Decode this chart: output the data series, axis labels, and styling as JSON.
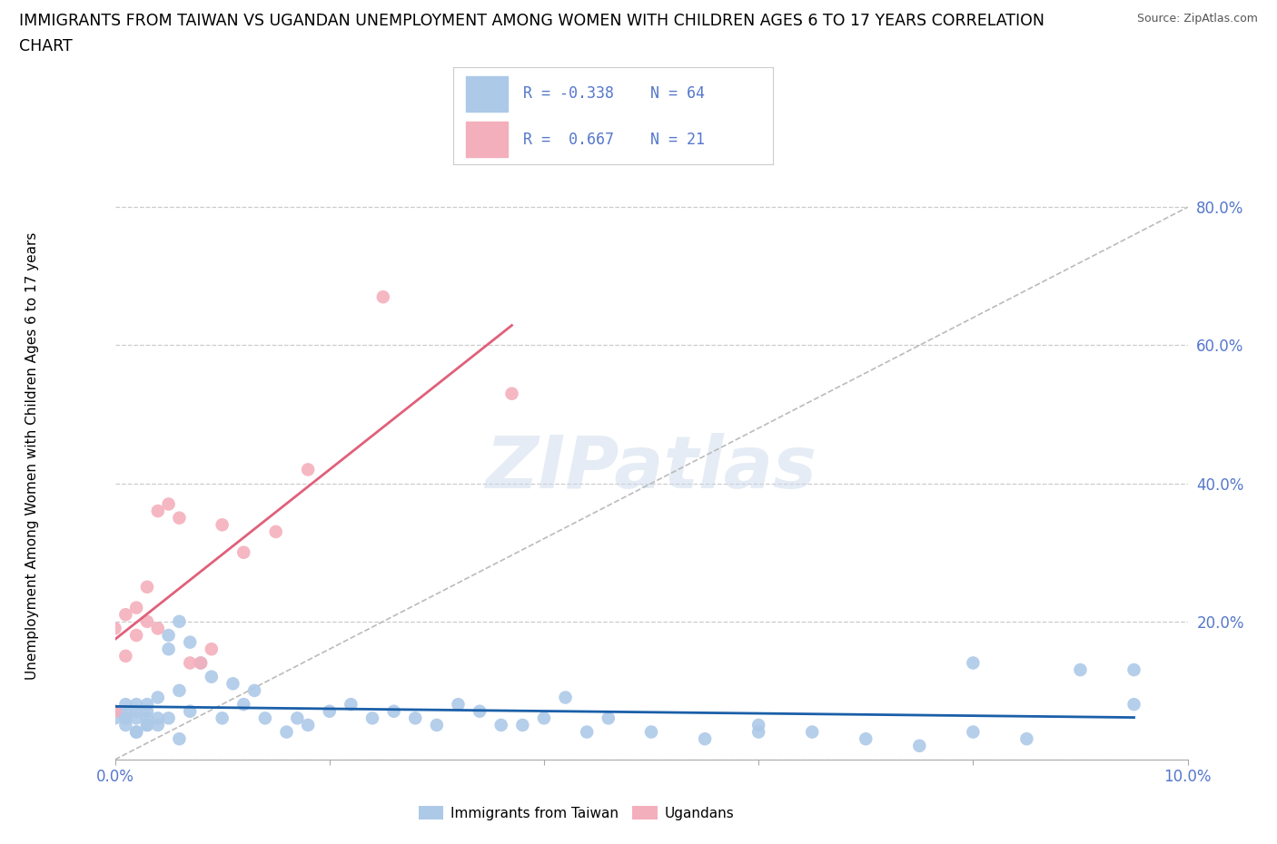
{
  "title_line1": "IMMIGRANTS FROM TAIWAN VS UGANDAN UNEMPLOYMENT AMONG WOMEN WITH CHILDREN AGES 6 TO 17 YEARS CORRELATION",
  "title_line2": "CHART",
  "source": "Source: ZipAtlas.com",
  "ylabel": "Unemployment Among Women with Children Ages 6 to 17 years",
  "xlim": [
    0.0,
    0.1
  ],
  "ylim": [
    0.0,
    0.88
  ],
  "xticks": [
    0.0,
    0.02,
    0.04,
    0.06,
    0.08,
    0.1
  ],
  "yticks": [
    0.0,
    0.2,
    0.4,
    0.6,
    0.8
  ],
  "ytick_labels": [
    "",
    "20.0%",
    "40.0%",
    "60.0%",
    "80.0%"
  ],
  "xtick_labels": [
    "0.0%",
    "",
    "",
    "",
    "",
    "10.0%"
  ],
  "grid_color": "#cccccc",
  "background_color": "#ffffff",
  "blue_color": "#adc9e8",
  "pink_color": "#f4afbc",
  "blue_line_color": "#1a5fa8",
  "pink_line_color": "#e0607a",
  "diag_line_color": "#bbbbbb",
  "tick_color": "#5577cc",
  "taiwan_x": [
    0.001,
    0.001,
    0.001,
    0.001,
    0.002,
    0.002,
    0.002,
    0.002,
    0.003,
    0.003,
    0.003,
    0.003,
    0.004,
    0.004,
    0.004,
    0.005,
    0.005,
    0.005,
    0.006,
    0.006,
    0.007,
    0.007,
    0.008,
    0.009,
    0.01,
    0.011,
    0.012,
    0.013,
    0.014,
    0.016,
    0.017,
    0.018,
    0.02,
    0.022,
    0.024,
    0.026,
    0.028,
    0.03,
    0.032,
    0.034,
    0.036,
    0.038,
    0.04,
    0.042,
    0.044,
    0.046,
    0.05,
    0.055,
    0.06,
    0.065,
    0.07,
    0.075,
    0.08,
    0.085,
    0.09,
    0.095,
    0.0,
    0.0,
    0.001,
    0.002,
    0.003,
    0.006,
    0.06,
    0.08,
    0.095
  ],
  "taiwan_y": [
    0.07,
    0.06,
    0.05,
    0.08,
    0.06,
    0.07,
    0.04,
    0.08,
    0.07,
    0.06,
    0.08,
    0.05,
    0.06,
    0.09,
    0.05,
    0.18,
    0.16,
    0.06,
    0.2,
    0.1,
    0.17,
    0.07,
    0.14,
    0.12,
    0.06,
    0.11,
    0.08,
    0.1,
    0.06,
    0.04,
    0.06,
    0.05,
    0.07,
    0.08,
    0.06,
    0.07,
    0.06,
    0.05,
    0.08,
    0.07,
    0.05,
    0.05,
    0.06,
    0.09,
    0.04,
    0.06,
    0.04,
    0.03,
    0.05,
    0.04,
    0.03,
    0.02,
    0.04,
    0.03,
    0.13,
    0.13,
    0.07,
    0.06,
    0.06,
    0.04,
    0.05,
    0.03,
    0.04,
    0.14,
    0.08
  ],
  "ugandan_x": [
    0.0,
    0.0,
    0.001,
    0.001,
    0.002,
    0.002,
    0.003,
    0.003,
    0.004,
    0.004,
    0.005,
    0.006,
    0.007,
    0.008,
    0.009,
    0.01,
    0.012,
    0.015,
    0.018,
    0.025,
    0.037
  ],
  "ugandan_y": [
    0.07,
    0.19,
    0.21,
    0.15,
    0.22,
    0.18,
    0.2,
    0.25,
    0.19,
    0.36,
    0.37,
    0.35,
    0.14,
    0.14,
    0.16,
    0.34,
    0.3,
    0.33,
    0.42,
    0.67,
    0.53
  ]
}
